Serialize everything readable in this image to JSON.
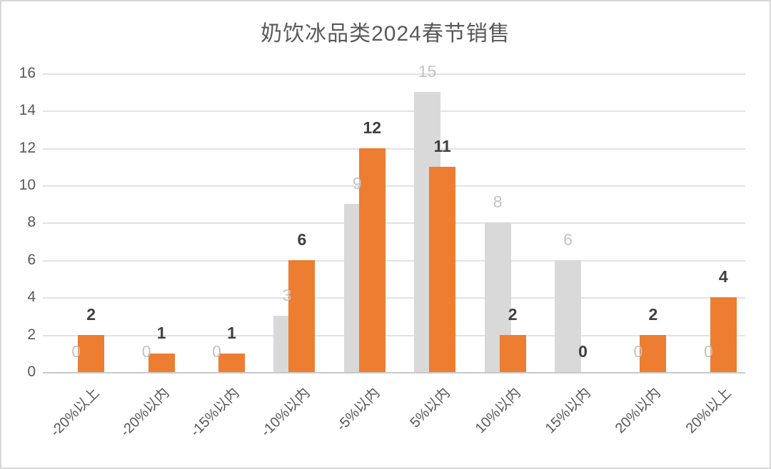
{
  "title": "奶饮冰品类2024春节销售",
  "chart_data": {
    "type": "bar",
    "title": "奶饮冰品类2024春节销售",
    "categories": [
      "-20%以上",
      "-20%以内",
      "-15%以内",
      "-10%以内",
      "-5%以内",
      "5%以内",
      "10%以内",
      "15%以内",
      "20%以内",
      "20%以上"
    ],
    "series": [
      {
        "name": "gray-series",
        "color": "#d9d9d9",
        "label_color": "#c3c3c3",
        "bold_labels": false,
        "values": [
          0,
          0,
          0,
          3,
          9,
          15,
          8,
          6,
          0,
          0
        ]
      },
      {
        "name": "orange-series",
        "color": "#ed7d31",
        "label_color": "#404040",
        "bold_labels": true,
        "values": [
          2,
          1,
          1,
          6,
          12,
          11,
          2,
          0,
          2,
          4
        ]
      }
    ],
    "yticks": [
      0,
      2,
      4,
      6,
      8,
      10,
      12,
      14,
      16
    ],
    "ylim": [
      0,
      16
    ],
    "xlabel": "",
    "ylabel": "",
    "grid": true,
    "legend": "none",
    "data_labels": "outside-end",
    "x_tick_rotation_deg": 45
  }
}
